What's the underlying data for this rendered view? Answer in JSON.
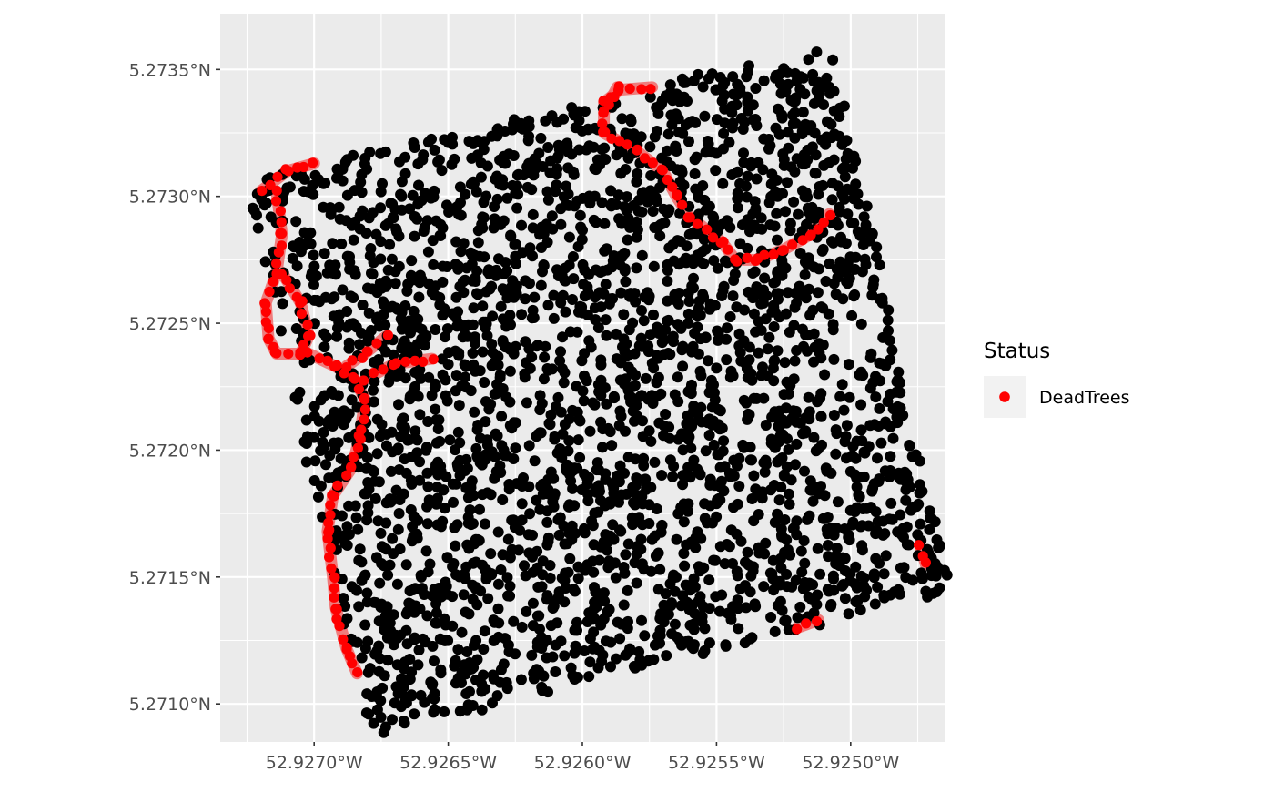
{
  "chart_data": {
    "type": "scatter",
    "title": "",
    "xlabel": "",
    "ylabel": "",
    "xlim": [
      -52.92735,
      -52.92465
    ],
    "ylim": [
      5.27085,
      5.27372
    ],
    "x_ticks": [
      {
        "value": -52.927,
        "label": "52.9270°W"
      },
      {
        "value": -52.9265,
        "label": "52.9265°W"
      },
      {
        "value": -52.926,
        "label": "52.9260°W"
      },
      {
        "value": -52.9255,
        "label": "52.9255°W"
      },
      {
        "value": -52.925,
        "label": "52.9250°W"
      }
    ],
    "y_ticks": [
      {
        "value": 5.271,
        "label": "5.2710°N"
      },
      {
        "value": 5.2715,
        "label": "5.2715°N"
      },
      {
        "value": 5.272,
        "label": "5.2720°N"
      },
      {
        "value": 5.2725,
        "label": "5.2725°N"
      },
      {
        "value": 5.273,
        "label": "5.2730°N"
      },
      {
        "value": 5.2735,
        "label": "5.2735°N"
      }
    ],
    "grid": true,
    "legend": {
      "title": "Status",
      "position": "right",
      "entries": [
        {
          "label": "DeadTrees",
          "color": "#ff0000"
        }
      ]
    },
    "plot_area": {
      "corners": [
        {
          "x": -52.92725,
          "y": 5.27306
        },
        {
          "x": -52.92507,
          "y": 5.2736
        },
        {
          "x": -52.92463,
          "y": 5.27144
        },
        {
          "x": -52.9268,
          "y": 5.27087
        }
      ]
    },
    "series": [
      {
        "name": "DeadTrees",
        "color": "#ff0000",
        "band_color": "#f06060",
        "paths": [
          [
            [
              -52.9272,
              5.27302
            ],
            [
              -52.9271,
              5.2731
            ],
            [
              -52.927,
              5.27313
            ]
          ],
          [
            [
              -52.92714,
              5.27302
            ],
            [
              -52.92712,
              5.27285
            ],
            [
              -52.92714,
              5.2727
            ],
            [
              -52.92718,
              5.27258
            ],
            [
              -52.92717,
              5.27244
            ],
            [
              -52.92714,
              5.27238
            ],
            [
              -52.92705,
              5.27238
            ],
            [
              -52.92702,
              5.27245
            ],
            [
              -52.92705,
              5.27258
            ],
            [
              -52.92712,
              5.2727
            ]
          ],
          [
            [
              -52.92702,
              5.27238
            ],
            [
              -52.92692,
              5.27233
            ],
            [
              -52.92685,
              5.27228
            ],
            [
              -52.92681,
              5.2722
            ],
            [
              -52.92683,
              5.27205
            ],
            [
              -52.92686,
              5.27193
            ],
            [
              -52.92693,
              5.27182
            ],
            [
              -52.92695,
              5.27168
            ],
            [
              -52.92693,
              5.2715
            ],
            [
              -52.92692,
              5.27138
            ],
            [
              -52.92688,
              5.27122
            ],
            [
              -52.92684,
              5.27112
            ]
          ],
          [
            [
              -52.92681,
              5.27228
            ],
            [
              -52.9267,
              5.27234
            ],
            [
              -52.92656,
              5.27236
            ]
          ],
          [
            [
              -52.92688,
              5.27233
            ],
            [
              -52.9268,
              5.27239
            ],
            [
              -52.92673,
              5.27245
            ]
          ],
          [
            [
              -52.92592,
              5.27337
            ],
            [
              -52.92586,
              5.27342
            ],
            [
              -52.92574,
              5.27343
            ]
          ],
          [
            [
              -52.92587,
              5.27343
            ],
            [
              -52.92592,
              5.27333
            ],
            [
              -52.92592,
              5.27325
            ],
            [
              -52.9258,
              5.27318
            ],
            [
              -52.9257,
              5.2731
            ],
            [
              -52.92565,
              5.273
            ],
            [
              -52.9256,
              5.27292
            ],
            [
              -52.92548,
              5.27282
            ],
            [
              -52.92543,
              5.27275
            ],
            [
              -52.92535,
              5.27275
            ],
            [
              -52.92525,
              5.27279
            ],
            [
              -52.92515,
              5.27285
            ],
            [
              -52.92508,
              5.27293
            ]
          ],
          [
            [
              -52.92474,
              5.27162
            ],
            [
              -52.92472,
              5.27155
            ]
          ],
          [
            [
              -52.9252,
              5.2713
            ],
            [
              -52.92512,
              5.27133
            ]
          ]
        ]
      },
      {
        "name": "",
        "color": "#000000"
      }
    ]
  }
}
